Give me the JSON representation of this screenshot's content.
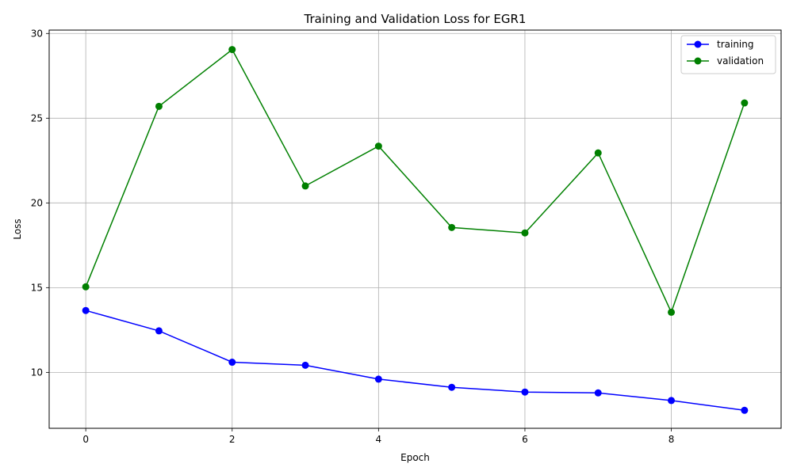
{
  "chart_data": {
    "type": "line",
    "title": "Training and Validation Loss for EGR1",
    "xlabel": "Epoch",
    "ylabel": "Loss",
    "xlim": [
      -0.5,
      9.5
    ],
    "ylim": [
      6.7,
      30.2
    ],
    "x": [
      0,
      1,
      2,
      3,
      4,
      5,
      6,
      7,
      8,
      9
    ],
    "xticks": [
      0,
      2,
      4,
      6,
      8
    ],
    "yticks": [
      10,
      15,
      20,
      25,
      30
    ],
    "grid": true,
    "legend_position": "upper-right",
    "series": [
      {
        "name": "training",
        "color": "#0000ff",
        "marker": "circle",
        "values": [
          13.65,
          12.45,
          10.6,
          10.42,
          9.6,
          9.12,
          8.84,
          8.79,
          8.34,
          7.76
        ]
      },
      {
        "name": "validation",
        "color": "#008000",
        "marker": "circle",
        "values": [
          15.05,
          25.7,
          29.05,
          21.0,
          23.35,
          18.55,
          18.23,
          22.95,
          13.55,
          25.9
        ]
      }
    ]
  }
}
